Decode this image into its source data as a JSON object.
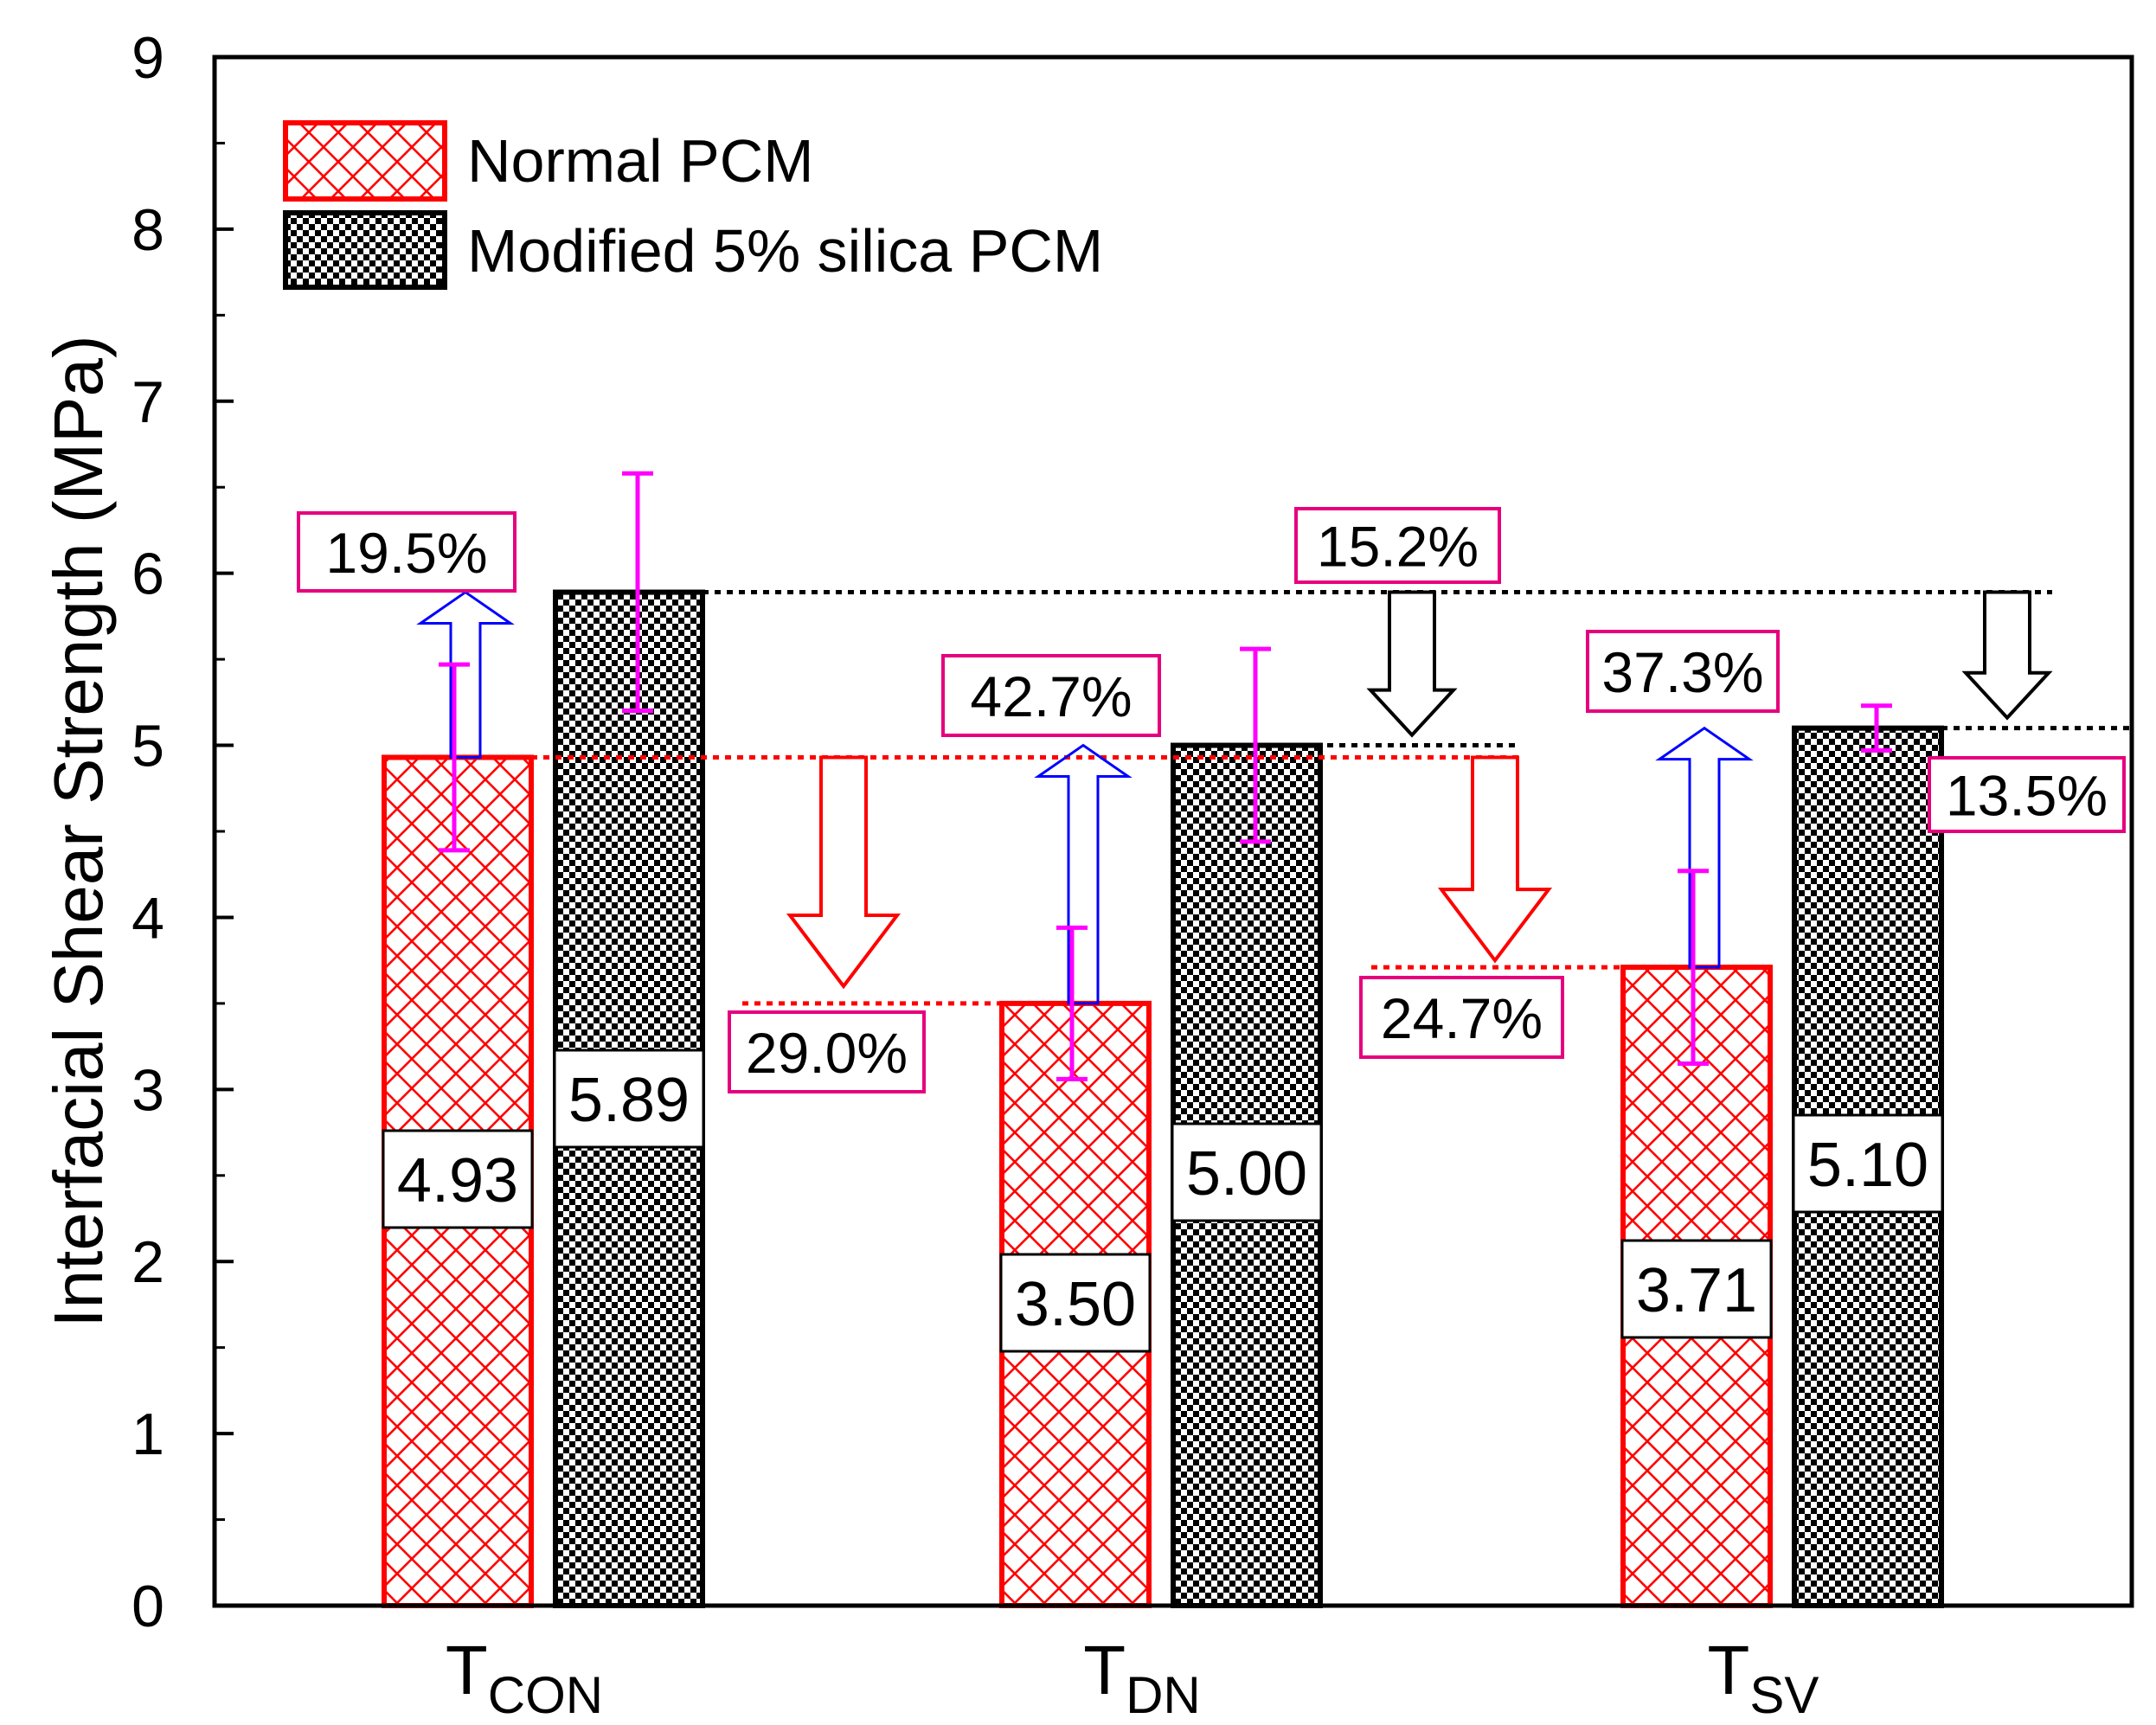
{
  "chart_data": {
    "type": "bar",
    "ylabel": "Interfacial Shear Strength (MPa)",
    "ylim": [
      0,
      9
    ],
    "yticks": [
      "0",
      "1",
      "2",
      "3",
      "4",
      "5",
      "6",
      "7",
      "8",
      "9"
    ],
    "categories": [
      {
        "main": "T",
        "sub": "CON"
      },
      {
        "main": "T",
        "sub": "DN"
      },
      {
        "main": "T",
        "sub": "SV"
      }
    ],
    "series": [
      {
        "name": "Normal PCM",
        "values": [
          4.93,
          3.5,
          3.71
        ],
        "labels": [
          "4.93",
          "3.50",
          "3.71"
        ],
        "errors": [
          0.54,
          0.44,
          0.56
        ],
        "color": "#ff0000",
        "pattern": "crosshatch"
      },
      {
        "name": "Modified 5% silica PCM",
        "values": [
          5.89,
          5.0,
          5.1
        ],
        "labels": [
          "5.89",
          "5.00",
          "5.10"
        ],
        "errors": [
          0.69,
          0.56,
          0.13
        ],
        "color": "#000000",
        "pattern": "checker"
      }
    ],
    "error_bar_color": "#ff00ff",
    "label_box_color": "#e6007e",
    "annotations": [
      {
        "text": "19.5%",
        "kind": "increase",
        "category": 0,
        "from": 4.93,
        "to": 5.89
      },
      {
        "text": "42.7%",
        "kind": "increase",
        "category": 1,
        "from": 3.5,
        "to": 5.0
      },
      {
        "text": "37.3%",
        "kind": "increase",
        "category": 2,
        "from": 3.71,
        "to": 5.1
      },
      {
        "text": "29.0%",
        "kind": "decrease",
        "series": "Normal PCM",
        "from": 4.93,
        "to": 3.5
      },
      {
        "text": "24.7%",
        "kind": "decrease",
        "series": "Normal PCM",
        "from": 4.93,
        "to": 3.71
      },
      {
        "text": "15.2%",
        "kind": "decrease",
        "series": "Modified 5% silica PCM",
        "from": 5.89,
        "to": 5.0
      },
      {
        "text": "13.5%",
        "kind": "decrease",
        "series": "Modified 5% silica PCM",
        "from": 5.89,
        "to": 5.1
      }
    ],
    "legend": {
      "position": "top-left",
      "entries": [
        "Normal PCM",
        "Modified 5% silica PCM"
      ]
    },
    "grid": false
  }
}
